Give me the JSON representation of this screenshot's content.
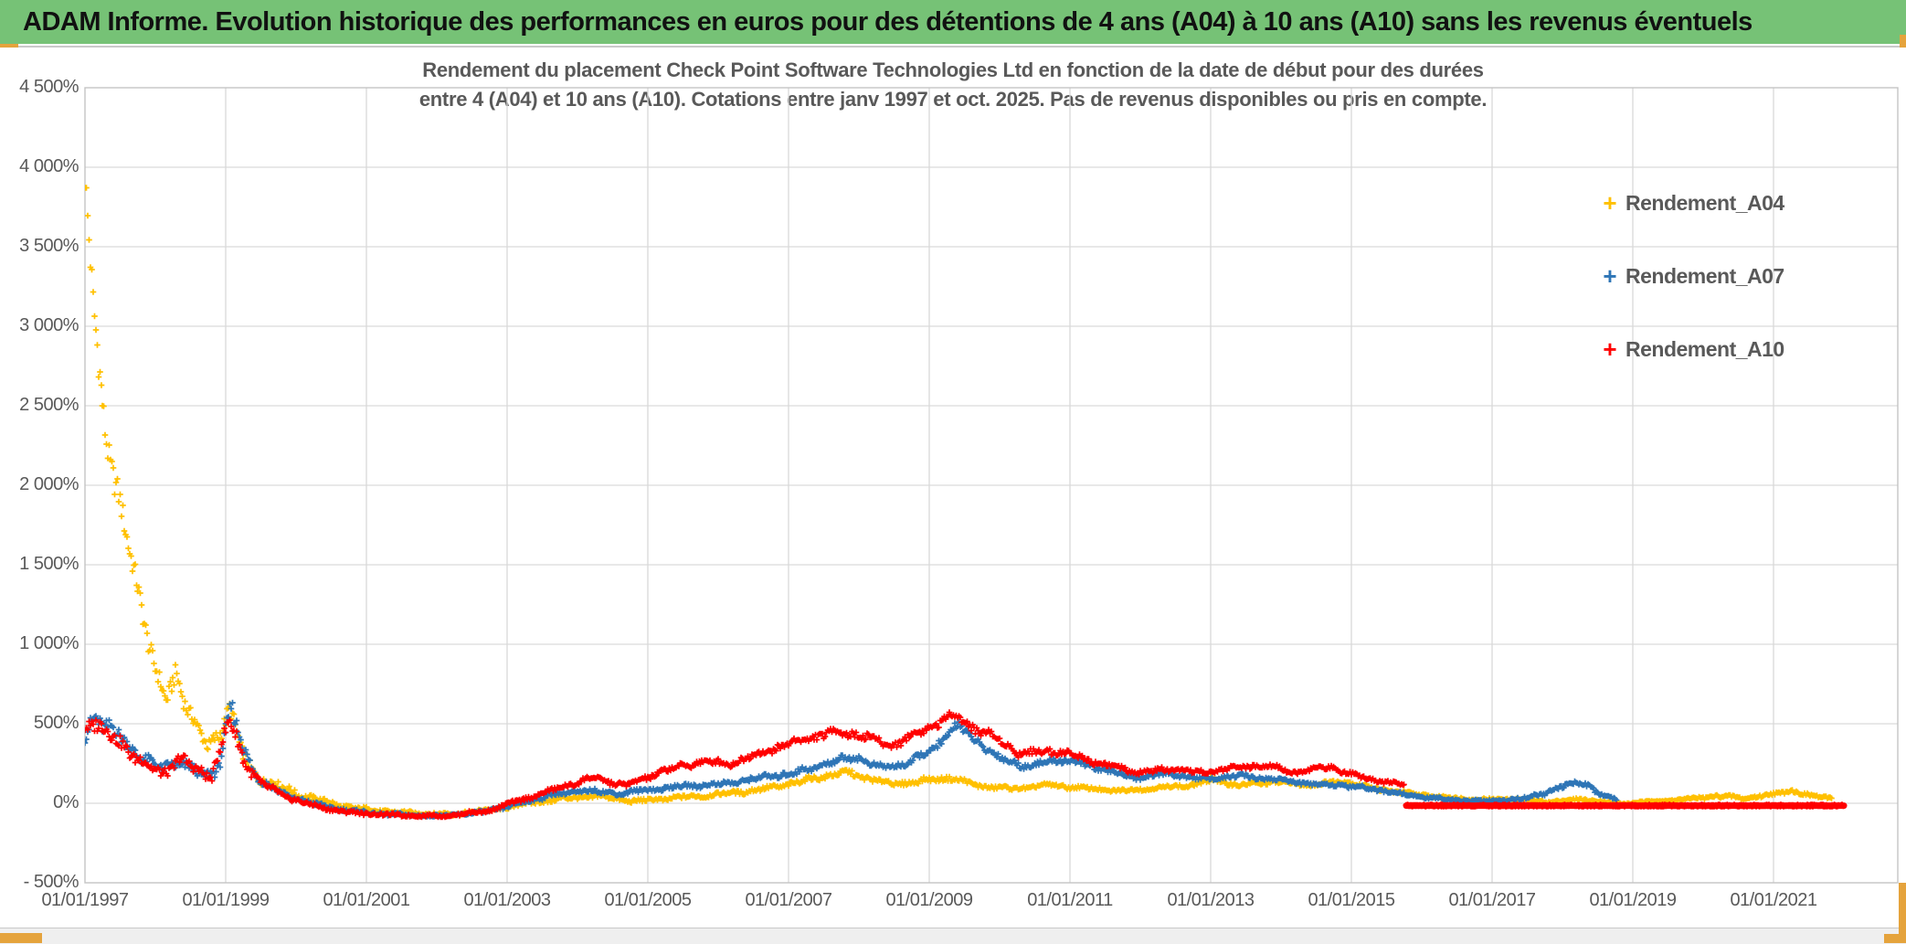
{
  "header": {
    "title": "ADAM Informe. Evolution historique des performances en euros pour des détentions de 4 ans (A04) à 10 ans (A10) sans les revenus éventuels",
    "bg_color": "#76C276",
    "text_color": "#111111"
  },
  "accents": {
    "orange": "#E5A33C",
    "frame_line": "#C9C9C9",
    "strip_bg": "#EFEFEF"
  },
  "chart_data": {
    "type": "scatter",
    "title_line1": "Rendement du placement Check Point Software Technologies Ltd en fonction de la date de début pour des durées",
    "title_line2": "entre 4 (A04) et 10 ans (A10). Cotations entre janv 1997 et oct. 2025. Pas de revenus disponibles ou pris en compte.",
    "title_color": "#595959",
    "grid_color": "#D9D9D9",
    "border_color": "#C4C4C4",
    "axis_text_color": "#595959",
    "y_axis": {
      "min": -500,
      "max": 4500,
      "step": 500,
      "tick_labels": [
        "4 500%",
        "4 000%",
        "3 500%",
        "3 000%",
        "2 500%",
        "2 000%",
        "1 500%",
        "1 000%",
        "500%",
        "0%",
        "- 500%"
      ]
    },
    "x_axis": {
      "start_year": 1997,
      "end_year": 2022.77,
      "label_step_years": 2,
      "tick_labels": [
        "01/01/1997",
        "01/01/1999",
        "01/01/2001",
        "01/01/2003",
        "01/01/2005",
        "01/01/2007",
        "01/01/2009",
        "01/01/2011",
        "01/01/2013",
        "01/01/2015",
        "01/01/2017",
        "01/01/2019",
        "01/01/2021"
      ]
    },
    "legend": [
      {
        "label": "Rendement_A04",
        "color": "#FFC000"
      },
      {
        "label": "Rendement_A07",
        "color": "#2E75B6"
      },
      {
        "label": "Rendement_A10",
        "color": "#FF0000"
      }
    ],
    "series": [
      {
        "name": "Rendement_A04",
        "color": "#FFC000",
        "marker": "plus",
        "seed": 1,
        "step_weeks": 1,
        "anchors": [
          [
            1997.0,
            3900,
            170
          ],
          [
            1997.06,
            3550,
            140
          ],
          [
            1997.12,
            3150,
            140
          ],
          [
            1997.2,
            2750,
            140
          ],
          [
            1997.3,
            2350,
            120
          ],
          [
            1997.42,
            2000,
            110
          ],
          [
            1997.55,
            1750,
            100
          ],
          [
            1997.68,
            1500,
            90
          ],
          [
            1997.82,
            1230,
            85
          ],
          [
            1998.0,
            820,
            75
          ],
          [
            1998.15,
            640,
            60
          ],
          [
            1998.3,
            820,
            80
          ],
          [
            1998.45,
            620,
            60
          ],
          [
            1998.6,
            460,
            50
          ],
          [
            1998.75,
            350,
            45
          ],
          [
            1998.9,
            430,
            60
          ],
          [
            1999.05,
            620,
            70
          ],
          [
            1999.2,
            350,
            50
          ],
          [
            1999.4,
            180,
            40
          ],
          [
            1999.7,
            120,
            30
          ],
          [
            2000.0,
            60,
            25
          ],
          [
            2000.4,
            10,
            20
          ],
          [
            2000.8,
            -30,
            15
          ],
          [
            2001.5,
            -60,
            12
          ],
          [
            2002.2,
            -70,
            10
          ],
          [
            2002.8,
            -40,
            12
          ],
          [
            2003.3,
            0,
            14
          ],
          [
            2003.8,
            30,
            14
          ],
          [
            2004.3,
            45,
            14
          ],
          [
            2004.8,
            12,
            12
          ],
          [
            2005.3,
            30,
            14
          ],
          [
            2005.8,
            48,
            14
          ],
          [
            2006.3,
            70,
            15
          ],
          [
            2006.8,
            100,
            17
          ],
          [
            2007.3,
            150,
            18
          ],
          [
            2007.8,
            195,
            20
          ],
          [
            2008.1,
            160,
            18
          ],
          [
            2008.5,
            120,
            16
          ],
          [
            2008.9,
            140,
            17
          ],
          [
            2009.3,
            160,
            18
          ],
          [
            2009.7,
            110,
            14
          ],
          [
            2010.2,
            90,
            13
          ],
          [
            2010.7,
            115,
            13
          ],
          [
            2011.2,
            95,
            12
          ],
          [
            2011.7,
            78,
            11
          ],
          [
            2012.2,
            95,
            11
          ],
          [
            2012.7,
            112,
            13
          ],
          [
            2013.05,
            150,
            26
          ],
          [
            2013.4,
            112,
            13
          ],
          [
            2013.9,
            135,
            13
          ],
          [
            2014.4,
            115,
            11
          ],
          [
            2014.9,
            140,
            13
          ],
          [
            2015.3,
            95,
            11
          ],
          [
            2015.8,
            62,
            10
          ],
          [
            2016.3,
            38,
            9
          ],
          [
            2016.8,
            22,
            9
          ],
          [
            2017.3,
            27,
            9
          ],
          [
            2017.8,
            8,
            8
          ],
          [
            2018.3,
            26,
            9
          ],
          [
            2018.8,
            -4,
            8
          ],
          [
            2019.3,
            12,
            8
          ],
          [
            2019.8,
            27,
            8
          ],
          [
            2020.2,
            46,
            11
          ],
          [
            2020.6,
            32,
            9
          ],
          [
            2021.0,
            56,
            11
          ],
          [
            2021.25,
            84,
            13
          ],
          [
            2021.5,
            46,
            11
          ],
          [
            2021.83,
            36,
            9
          ]
        ]
      },
      {
        "name": "Rendement_A07",
        "color": "#2E75B6",
        "marker": "plus",
        "seed": 2,
        "step_weeks": 1,
        "anchors": [
          [
            1997.0,
            430,
            60
          ],
          [
            1997.15,
            560,
            65
          ],
          [
            1997.3,
            480,
            60
          ],
          [
            1997.5,
            420,
            50
          ],
          [
            1997.7,
            330,
            45
          ],
          [
            1997.9,
            262,
            40
          ],
          [
            1998.1,
            212,
            38
          ],
          [
            1998.3,
            262,
            42
          ],
          [
            1998.5,
            222,
            38
          ],
          [
            1998.7,
            162,
            34
          ],
          [
            1998.9,
            240,
            48
          ],
          [
            1999.08,
            600,
            75
          ],
          [
            1999.25,
            330,
            50
          ],
          [
            1999.5,
            142,
            30
          ],
          [
            1999.8,
            62,
            20
          ],
          [
            2000.2,
            2,
            15
          ],
          [
            2000.7,
            -45,
            12
          ],
          [
            2001.3,
            -70,
            10
          ],
          [
            2002.0,
            -80,
            8
          ],
          [
            2002.6,
            -60,
            10
          ],
          [
            2003.1,
            -10,
            12
          ],
          [
            2003.6,
            50,
            14
          ],
          [
            2004.1,
            80,
            14
          ],
          [
            2004.6,
            62,
            14
          ],
          [
            2005.1,
            90,
            16
          ],
          [
            2005.6,
            110,
            16
          ],
          [
            2006.1,
            122,
            16
          ],
          [
            2006.6,
            160,
            18
          ],
          [
            2007.1,
            192,
            20
          ],
          [
            2007.6,
            258,
            22
          ],
          [
            2007.95,
            295,
            23
          ],
          [
            2008.3,
            222,
            20
          ],
          [
            2008.7,
            252,
            22
          ],
          [
            2009.0,
            322,
            26
          ],
          [
            2009.4,
            488,
            34
          ],
          [
            2009.7,
            382,
            28
          ],
          [
            2010.0,
            282,
            24
          ],
          [
            2010.4,
            232,
            20
          ],
          [
            2010.9,
            278,
            22
          ],
          [
            2011.4,
            222,
            18
          ],
          [
            2011.9,
            162,
            16
          ],
          [
            2012.4,
            186,
            16
          ],
          [
            2012.9,
            152,
            14
          ],
          [
            2013.4,
            172,
            14
          ],
          [
            2013.9,
            152,
            14
          ],
          [
            2014.4,
            122,
            12
          ],
          [
            2014.9,
            112,
            12
          ],
          [
            2015.4,
            82,
            10
          ],
          [
            2015.9,
            46,
            9
          ],
          [
            2016.4,
            22,
            8
          ],
          [
            2016.9,
            12,
            8
          ],
          [
            2017.4,
            26,
            9
          ],
          [
            2017.8,
            70,
            13
          ],
          [
            2018.1,
            118,
            16
          ],
          [
            2018.3,
            138,
            16
          ],
          [
            2018.5,
            62,
            13
          ],
          [
            2018.78,
            22,
            9
          ]
        ]
      },
      {
        "name": "Rendement_A10",
        "color": "#FF0000",
        "marker": "plus",
        "seed": 3,
        "step_weeks": 1,
        "anchors": [
          [
            1997.0,
            480,
            55
          ],
          [
            1997.15,
            520,
            58
          ],
          [
            1997.3,
            442,
            52
          ],
          [
            1997.5,
            382,
            48
          ],
          [
            1997.7,
            302,
            44
          ],
          [
            1997.9,
            232,
            40
          ],
          [
            1998.1,
            182,
            35
          ],
          [
            1998.35,
            282,
            44
          ],
          [
            1998.6,
            202,
            38
          ],
          [
            1998.8,
            172,
            34
          ],
          [
            1999.05,
            520,
            65
          ],
          [
            1999.25,
            282,
            44
          ],
          [
            1999.5,
            122,
            28
          ],
          [
            1999.8,
            52,
            20
          ],
          [
            2000.2,
            -10,
            14
          ],
          [
            2000.7,
            -55,
            11
          ],
          [
            2001.4,
            -75,
            9
          ],
          [
            2002.1,
            -80,
            8
          ],
          [
            2002.7,
            -50,
            10
          ],
          [
            2003.2,
            20,
            14
          ],
          [
            2003.7,
            90,
            16
          ],
          [
            2004.2,
            160,
            18
          ],
          [
            2004.7,
            112,
            16
          ],
          [
            2005.2,
            200,
            20
          ],
          [
            2005.7,
            258,
            22
          ],
          [
            2006.2,
            252,
            22
          ],
          [
            2006.7,
            330,
            25
          ],
          [
            2007.2,
            400,
            27
          ],
          [
            2007.7,
            452,
            28
          ],
          [
            2008.1,
            420,
            27
          ],
          [
            2008.45,
            362,
            25
          ],
          [
            2008.8,
            432,
            28
          ],
          [
            2009.1,
            502,
            30
          ],
          [
            2009.35,
            558,
            32
          ],
          [
            2009.6,
            482,
            30
          ],
          [
            2009.9,
            422,
            27
          ],
          [
            2010.3,
            312,
            24
          ],
          [
            2010.8,
            332,
            24
          ],
          [
            2011.2,
            282,
            21
          ],
          [
            2011.6,
            232,
            19
          ],
          [
            2011.95,
            192,
            17
          ],
          [
            2012.4,
            212,
            17
          ],
          [
            2012.9,
            192,
            16
          ],
          [
            2013.3,
            222,
            18
          ],
          [
            2013.8,
            242,
            18
          ],
          [
            2014.2,
            192,
            16
          ],
          [
            2014.7,
            232,
            18
          ],
          [
            2015.0,
            182,
            16
          ],
          [
            2015.4,
            142,
            13
          ],
          [
            2015.75,
            112,
            12
          ]
        ],
        "flat": {
          "start": 2015.78,
          "end": 2022.0,
          "value": -15,
          "amp": 6,
          "line_width": 7
        }
      }
    ]
  }
}
